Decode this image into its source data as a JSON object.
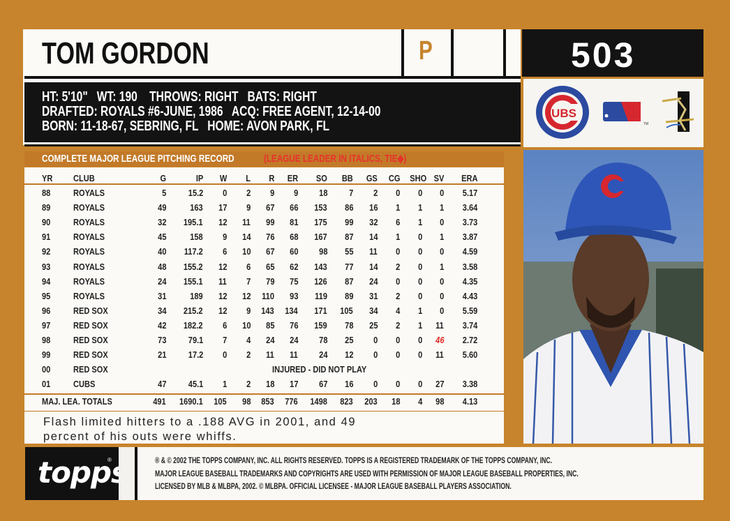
{
  "card": {
    "player_name": "TOM GORDON",
    "position": "P",
    "card_number": "503",
    "bio": [
      "HT: 5'10\"   WT: 190    THROWS: RIGHT   BATS: RIGHT",
      "DRAFTED: ROYALS #6-JUNE, 1986   ACQ: FREE AGENT, 12-14-00",
      "BORN: 11-18-67, SEBRING, FL   HOME: AVON PARK, FL"
    ],
    "logos": [
      "cubs-logo",
      "mlb-logo",
      "mlbpa-players-choice-logo"
    ],
    "colors": {
      "border": "#c7842c",
      "panel": "#141313",
      "leader": "#e02a25"
    }
  },
  "stats": {
    "title": "COMPLETE MAJOR LEAGUE PITCHING RECORD",
    "note": "(LEAGUE LEADER IN ITALICS, TIE◆)",
    "columns": [
      "YR",
      "CLUB",
      "G",
      "IP",
      "W",
      "L",
      "R",
      "ER",
      "SO",
      "BB",
      "GS",
      "CG",
      "SHO",
      "SV",
      "ERA"
    ],
    "rows": [
      [
        "88",
        "ROYALS",
        "5",
        "15.2",
        "0",
        "2",
        "9",
        "9",
        "18",
        "7",
        "2",
        "0",
        "0",
        "0",
        "5.17"
      ],
      [
        "89",
        "ROYALS",
        "49",
        "163",
        "17",
        "9",
        "67",
        "66",
        "153",
        "86",
        "16",
        "1",
        "1",
        "1",
        "3.64"
      ],
      [
        "90",
        "ROYALS",
        "32",
        "195.1",
        "12",
        "11",
        "99",
        "81",
        "175",
        "99",
        "32",
        "6",
        "1",
        "0",
        "3.73"
      ],
      [
        "91",
        "ROYALS",
        "45",
        "158",
        "9",
        "14",
        "76",
        "68",
        "167",
        "87",
        "14",
        "1",
        "0",
        "1",
        "3.87"
      ],
      [
        "92",
        "ROYALS",
        "40",
        "117.2",
        "6",
        "10",
        "67",
        "60",
        "98",
        "55",
        "11",
        "0",
        "0",
        "0",
        "4.59"
      ],
      [
        "93",
        "ROYALS",
        "48",
        "155.2",
        "12",
        "6",
        "65",
        "62",
        "143",
        "77",
        "14",
        "2",
        "0",
        "1",
        "3.58"
      ],
      [
        "94",
        "ROYALS",
        "24",
        "155.1",
        "11",
        "7",
        "79",
        "75",
        "126",
        "87",
        "24",
        "0",
        "0",
        "0",
        "4.35"
      ],
      [
        "95",
        "ROYALS",
        "31",
        "189",
        "12",
        "12",
        "110",
        "93",
        "119",
        "89",
        "31",
        "2",
        "0",
        "0",
        "4.43"
      ],
      [
        "96",
        "RED SOX",
        "34",
        "215.2",
        "12",
        "9",
        "143",
        "134",
        "171",
        "105",
        "34",
        "4",
        "1",
        "0",
        "5.59"
      ],
      [
        "97",
        "RED SOX",
        "42",
        "182.2",
        "6",
        "10",
        "85",
        "76",
        "159",
        "78",
        "25",
        "2",
        "1",
        "11",
        "3.74"
      ],
      [
        "98",
        "RED SOX",
        "73",
        "79.1",
        "7",
        "4",
        "24",
        "24",
        "78",
        "25",
        "0",
        "0",
        "0",
        "46",
        "2.72"
      ],
      [
        "99",
        "RED SOX",
        "21",
        "17.2",
        "0",
        "2",
        "11",
        "11",
        "24",
        "12",
        "0",
        "0",
        "0",
        "11",
        "5.60"
      ],
      [
        "00",
        "RED SOX",
        "INJURED - DID NOT PLAY"
      ],
      [
        "01",
        "CUBS",
        "47",
        "45.1",
        "1",
        "2",
        "18",
        "17",
        "67",
        "16",
        "0",
        "0",
        "0",
        "27",
        "3.38"
      ]
    ],
    "league_leader_cells": [
      {
        "row": 10,
        "col": "SV"
      }
    ],
    "totals": [
      "MAJ. LEA. TOTALS",
      "491",
      "1690.1",
      "105",
      "98",
      "853",
      "776",
      "1498",
      "823",
      "203",
      "18",
      "4",
      "98",
      "4.13"
    ]
  },
  "blurb": [
    "Flash limited hitters to a .188 AVG in 2001, and 49",
    "percent of his outs were whiffs."
  ],
  "footer": {
    "brand": "topps",
    "legal": [
      "® & © 2002 THE TOPPS COMPANY, INC. ALL RIGHTS RESERVED. TOPPS IS A REGISTERED TRADEMARK OF THE  TOPPS COMPANY, INC.",
      "MAJOR LEAGUE BASEBALL TRADEMARKS AND COPYRIGHTS ARE USED WITH PERMISSION OF MAJOR LEAGUE BASEBALL PROPERTIES, INC.",
      "LICENSED BY MLB & MLBPA, 2002. © MLBPA. OFFICIAL LICENSEE - MAJOR LEAGUE BASEBALL PLAYERS ASSOCIATION."
    ]
  }
}
